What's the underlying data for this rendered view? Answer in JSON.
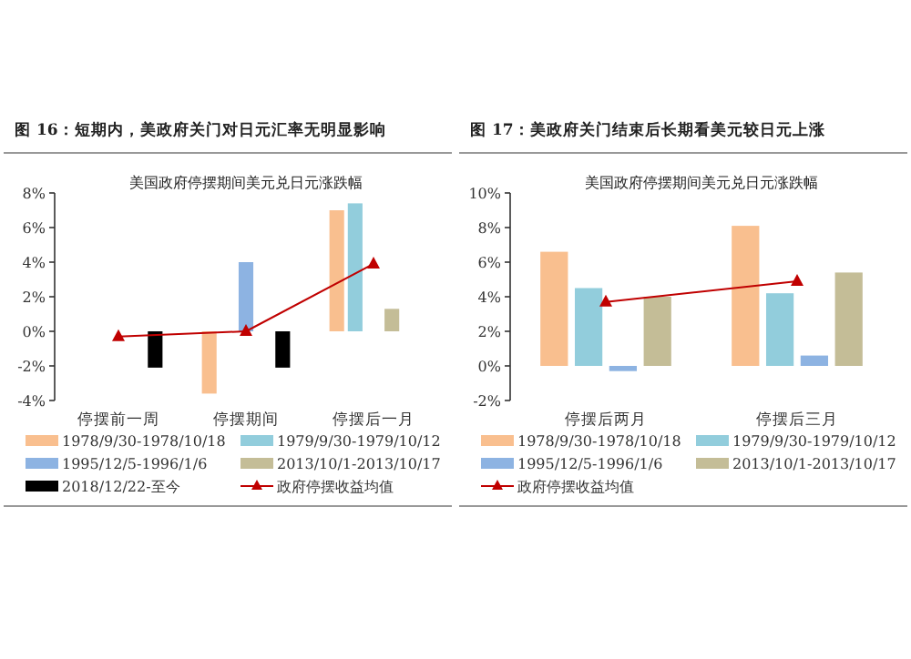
{
  "chart_data": [
    {
      "type": "bar",
      "title": "图 16：短期内，美政府关门对日元汇率无明显影响",
      "subtitle": "美国政府停摆期间美元兑日元涨跌幅",
      "categories": [
        "停摆前一周",
        "停摆期间",
        "停摆后一月"
      ],
      "ylim": [
        -4,
        8
      ],
      "yticks": [
        {
          "value": -4,
          "label": "-4%"
        },
        {
          "value": -2,
          "label": "-2%"
        },
        {
          "value": 0,
          "label": "0%"
        },
        {
          "value": 2,
          "label": "2%"
        },
        {
          "value": 4,
          "label": "4%"
        },
        {
          "value": 6,
          "label": "6%"
        },
        {
          "value": 8,
          "label": "8%"
        }
      ],
      "legend": "bottom",
      "series": [
        {
          "name": "1978/9/30-1978/10/18",
          "color": "#f9bf8f",
          "values": [
            null,
            -3.6,
            7.0
          ]
        },
        {
          "name": "1979/9/30-1979/10/12",
          "color": "#92cddc",
          "values": [
            null,
            null,
            7.4
          ]
        },
        {
          "name": "1995/12/5-1996/1/6",
          "color": "#8db3e2",
          "values": [
            null,
            4.0,
            null
          ]
        },
        {
          "name": "2013/10/1-2013/10/17",
          "color": "#c4bd97",
          "values": [
            null,
            null,
            1.3
          ]
        },
        {
          "name": "2018/12/22-至今",
          "color": "#000000",
          "values": [
            -2.1,
            -2.1,
            null
          ]
        },
        {
          "name": "政府停摆收益均值",
          "type": "line",
          "marker": "triangle",
          "color": "#c00000",
          "values": [
            -0.3,
            0.0,
            3.9
          ]
        }
      ]
    },
    {
      "type": "bar",
      "title": "图 17：美政府关门结束后长期看美元较日元上涨",
      "subtitle": "美国政府停摆期间美元兑日元涨跌幅",
      "categories": [
        "停摆后两月",
        "停摆后三月"
      ],
      "ylim": [
        -2,
        10
      ],
      "yticks": [
        {
          "value": -2,
          "label": "-2%"
        },
        {
          "value": 0,
          "label": "0%"
        },
        {
          "value": 2,
          "label": "2%"
        },
        {
          "value": 4,
          "label": "4%"
        },
        {
          "value": 6,
          "label": "6%"
        },
        {
          "value": 8,
          "label": "8%"
        },
        {
          "value": 10,
          "label": "10%"
        }
      ],
      "legend": "bottom",
      "series": [
        {
          "name": "1978/9/30-1978/10/18",
          "color": "#f9bf8f",
          "values": [
            6.6,
            8.1
          ]
        },
        {
          "name": "1979/9/30-1979/10/12",
          "color": "#92cddc",
          "values": [
            4.5,
            4.2
          ]
        },
        {
          "name": "1995/12/5-1996/1/6",
          "color": "#8db3e2",
          "values": [
            -0.3,
            0.6
          ]
        },
        {
          "name": "2013/10/1-2013/10/17",
          "color": "#c4bd97",
          "values": [
            4.0,
            5.4
          ]
        },
        {
          "name": "政府停摆收益均值",
          "type": "line",
          "marker": "triangle",
          "color": "#c00000",
          "values": [
            3.7,
            4.9
          ]
        }
      ]
    }
  ]
}
